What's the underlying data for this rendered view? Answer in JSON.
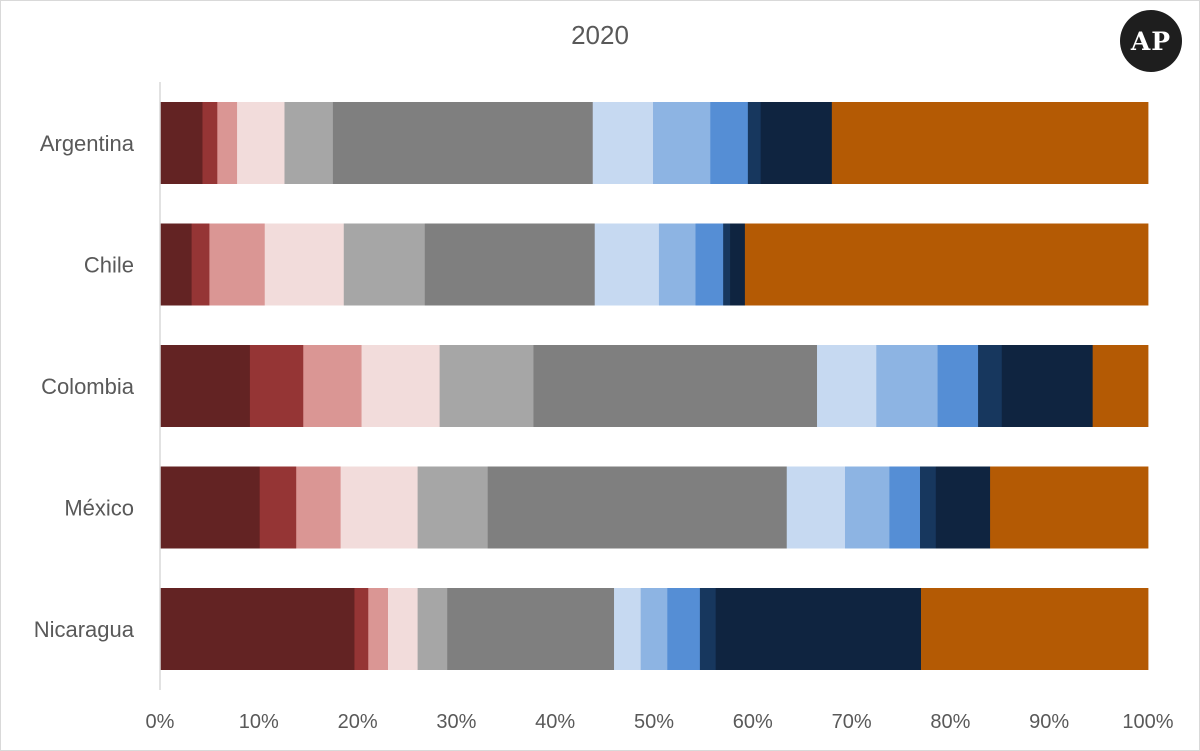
{
  "logo": {
    "text": "AP"
  },
  "chart_data": {
    "type": "bar",
    "orientation": "horizontal",
    "stacked": true,
    "title": "2020",
    "xlabel": "",
    "ylabel": "",
    "xlim": [
      0,
      100
    ],
    "x_ticks": [
      "0%",
      "10%",
      "20%",
      "30%",
      "40%",
      "50%",
      "60%",
      "70%",
      "80%",
      "90%",
      "100%"
    ],
    "grid": false,
    "legend": "none",
    "categories": [
      "Argentina",
      "Chile",
      "Colombia",
      "México",
      "Nicaragua"
    ],
    "series": [
      {
        "color": "#632323",
        "values": [
          4.3,
          3.2,
          9.1,
          10.1,
          19.7
        ]
      },
      {
        "color": "#953535",
        "values": [
          1.5,
          1.8,
          5.4,
          3.7,
          1.4
        ]
      },
      {
        "color": "#da9694",
        "values": [
          2.0,
          5.6,
          5.9,
          4.5,
          2.0
        ]
      },
      {
        "color": "#f2dcdb",
        "values": [
          4.8,
          8.0,
          7.9,
          7.8,
          3.0
        ]
      },
      {
        "color": "#a6a6a6",
        "values": [
          4.9,
          8.2,
          9.5,
          7.1,
          3.0
        ]
      },
      {
        "color": "#7f7f7f",
        "values": [
          26.3,
          17.2,
          28.7,
          30.3,
          16.9
        ]
      },
      {
        "color": "#c6d9f1",
        "values": [
          6.1,
          6.5,
          6.0,
          5.9,
          2.7
        ]
      },
      {
        "color": "#8db4e3",
        "values": [
          5.8,
          3.7,
          6.2,
          4.5,
          2.7
        ]
      },
      {
        "color": "#558ed5",
        "values": [
          3.8,
          2.8,
          4.1,
          3.1,
          3.3
        ]
      },
      {
        "color": "#17375e",
        "values": [
          1.3,
          0.7,
          2.4,
          1.6,
          1.6
        ]
      },
      {
        "color": "#0f2440",
        "values": [
          7.2,
          1.5,
          9.2,
          5.5,
          20.8
        ]
      },
      {
        "color": "#b45a04",
        "values": [
          32.0,
          40.8,
          5.6,
          16.0,
          23.0
        ]
      }
    ]
  }
}
